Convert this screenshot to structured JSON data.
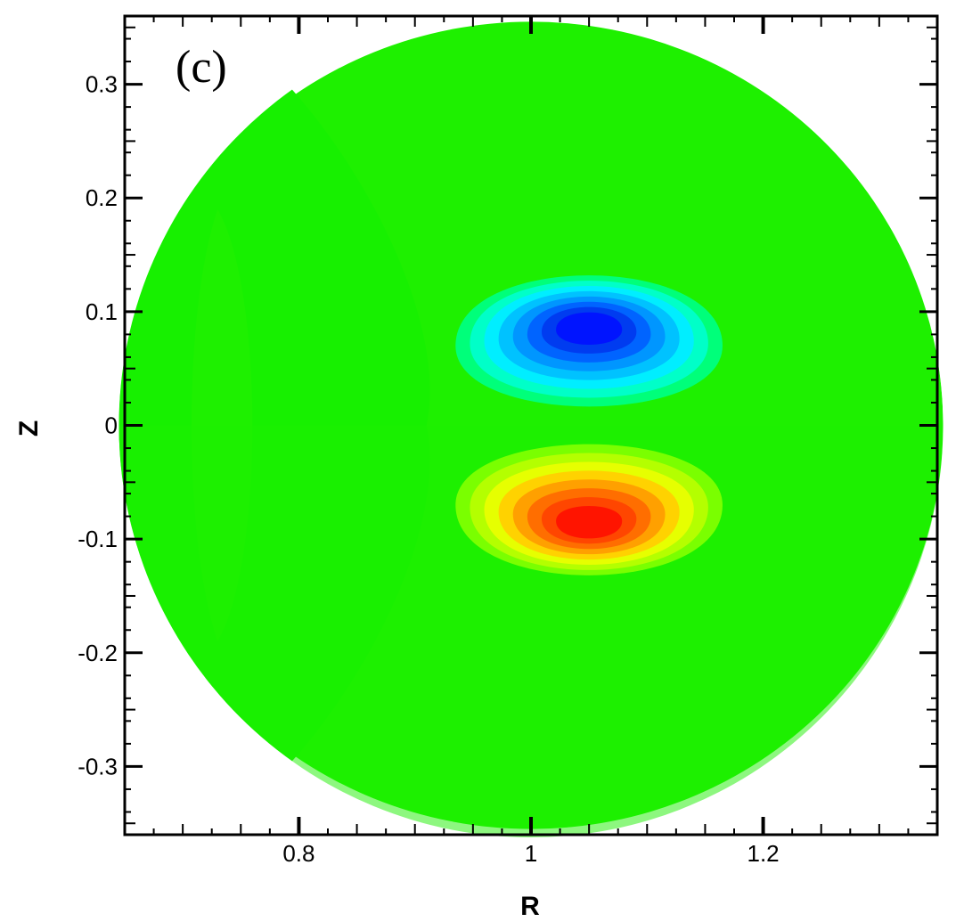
{
  "chart_data": {
    "type": "heatmap",
    "panel_label": "(c)",
    "xlabel": "R",
    "ylabel": "Z",
    "xlim": [
      0.65,
      1.35
    ],
    "ylim": [
      -0.36,
      0.36
    ],
    "x_ticks": [
      {
        "value": 0.8,
        "label": "0.8"
      },
      {
        "value": 1.0,
        "label": "1"
      },
      {
        "value": 1.2,
        "label": "1.2"
      }
    ],
    "y_ticks": [
      {
        "value": 0.3,
        "label": "0.3"
      },
      {
        "value": 0.2,
        "label": "0.2"
      },
      {
        "value": 0.1,
        "label": "0.1"
      },
      {
        "value": 0.0,
        "label": "0"
      },
      {
        "value": -0.1,
        "label": "-0.1"
      },
      {
        "value": -0.2,
        "label": "-0.2"
      },
      {
        "value": -0.3,
        "label": "-0.3"
      }
    ],
    "domain": {
      "shape": "circle",
      "center_r": 1.0,
      "center_z": 0.0,
      "radius": 0.355
    },
    "background_color": "#1ef000",
    "colors": {
      "blue_lobe": [
        "#00ff7a",
        "#00ffc8",
        "#00eeff",
        "#00c2ff",
        "#0096ff",
        "#0064ff",
        "#003cf0",
        "#0014ff"
      ],
      "red_lobe": [
        "#7aff00",
        "#b4ff00",
        "#e6ff00",
        "#ffd200",
        "#ffa000",
        "#ff6e00",
        "#ff4600",
        "#ff1400"
      ]
    },
    "lobes": [
      {
        "center_r": 1.05,
        "center_z": 0.07,
        "half_width_r": 0.115,
        "half_height_z": 0.075,
        "sign": "negative"
      },
      {
        "center_r": 1.05,
        "center_z": -0.07,
        "half_width_r": 0.115,
        "half_height_z": 0.075,
        "sign": "positive"
      }
    ]
  }
}
